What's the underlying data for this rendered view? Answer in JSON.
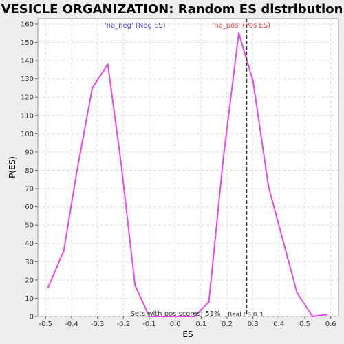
{
  "chart_data": {
    "type": "line",
    "title": "VESICLE ORGANIZATION: Random ES distribution",
    "xlabel": "ES",
    "ylabel": "P(ES)",
    "xlim": [
      -0.53,
      0.63
    ],
    "ylim": [
      0,
      163
    ],
    "x_ticks": [
      -0.5,
      -0.4,
      -0.3,
      -0.2,
      -0.1,
      0.0,
      0.1,
      0.2,
      0.3,
      0.4,
      0.5,
      0.6
    ],
    "x_tick_labels": [
      "-0.5",
      "-0.4",
      "-0.3",
      "-0.2",
      "-0.1",
      "0.0",
      "0.1",
      "0.2",
      "0.3",
      "0.4",
      "0.5",
      "0.6"
    ],
    "y_ticks": [
      0,
      10,
      20,
      30,
      40,
      50,
      60,
      70,
      80,
      90,
      100,
      110,
      120,
      130,
      140,
      150,
      160
    ],
    "y_tick_labels": [
      "0",
      "10",
      "20",
      "30",
      "40",
      "50",
      "60",
      "70",
      "80",
      "90",
      "100",
      "110",
      "120",
      "130",
      "140",
      "150",
      "160"
    ],
    "grid": true,
    "series": [
      {
        "color": "#ee44ee",
        "x": [
          -0.49,
          -0.43,
          -0.38,
          -0.32,
          -0.26,
          -0.21,
          -0.155,
          -0.1,
          -0.045,
          0.0,
          0.075,
          0.13,
          0.185,
          0.245,
          0.3,
          0.36,
          0.415,
          0.47,
          0.53,
          0.585
        ],
        "y": [
          16,
          36,
          79,
          125,
          138,
          85,
          17,
          0,
          0,
          0,
          0,
          8,
          86,
          155,
          129,
          71,
          42,
          13,
          0,
          1
        ]
      }
    ],
    "reference_line": {
      "x": 0.275,
      "style": "dashed",
      "color": "#333333"
    },
    "annotations": {
      "neg": {
        "text": "'na_neg' (Neg ES)",
        "color": "#4444dd",
        "x": -0.155
      },
      "pos": {
        "text": "'na_pos' (Pos ES)",
        "color": "#dd4444",
        "x": 0.255
      },
      "sets": {
        "text": "Sets with pos scores: 51%",
        "color": "#333333"
      },
      "real": {
        "text": "Real ES 0.3",
        "color": "#333333"
      }
    }
  }
}
